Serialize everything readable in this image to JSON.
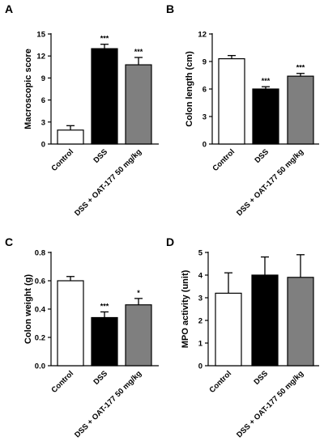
{
  "chart_data": [
    {
      "type": "bar",
      "panel": "A",
      "ylabel": "Macroscopic score",
      "ylim": [
        0,
        15
      ],
      "yticks": [
        0,
        3,
        6,
        9,
        12,
        15
      ],
      "categories": [
        "Control",
        "DSS",
        "DSS + OAT-177 50 mg/kg"
      ],
      "values": [
        1.9,
        13.0,
        10.8
      ],
      "errors": [
        0.6,
        0.6,
        1.0
      ],
      "significance": [
        "",
        "***",
        "***"
      ],
      "colors": [
        "#ffffff",
        "#000000",
        "#7f7f7f"
      ]
    },
    {
      "type": "bar",
      "panel": "B",
      "ylabel": "Colon length (cm)",
      "ylim": [
        0,
        12
      ],
      "yticks": [
        0,
        3,
        6,
        9,
        12
      ],
      "categories": [
        "Control",
        "DSS",
        "DSS + OAT-177 50 mg/kg"
      ],
      "values": [
        9.3,
        6.0,
        7.4
      ],
      "errors": [
        0.35,
        0.25,
        0.3
      ],
      "significance": [
        "",
        "***",
        "***"
      ],
      "colors": [
        "#ffffff",
        "#000000",
        "#7f7f7f"
      ]
    },
    {
      "type": "bar",
      "panel": "C",
      "ylabel": "Colon weight (g)",
      "ylim": [
        0,
        0.8
      ],
      "yticks": [
        0.0,
        0.2,
        0.4,
        0.6,
        0.8
      ],
      "tick_decimals": 1,
      "categories": [
        "Control",
        "DSS",
        "DSS + OAT-177 50 mg/kg"
      ],
      "values": [
        0.6,
        0.34,
        0.43
      ],
      "errors": [
        0.03,
        0.04,
        0.045
      ],
      "significance": [
        "",
        "***",
        "*"
      ],
      "colors": [
        "#ffffff",
        "#000000",
        "#7f7f7f"
      ]
    },
    {
      "type": "bar",
      "panel": "D",
      "ylabel": "MPO activity (unit)",
      "ylim": [
        0,
        5
      ],
      "yticks": [
        0,
        1,
        2,
        3,
        4,
        5
      ],
      "categories": [
        "Control",
        "DSS",
        "DSS + OAT-177 50 mg/kg"
      ],
      "values": [
        3.2,
        4.0,
        3.9
      ],
      "errors": [
        0.9,
        0.8,
        1.0
      ],
      "significance": [
        "",
        "",
        ""
      ],
      "colors": [
        "#ffffff",
        "#000000",
        "#7f7f7f"
      ]
    }
  ]
}
